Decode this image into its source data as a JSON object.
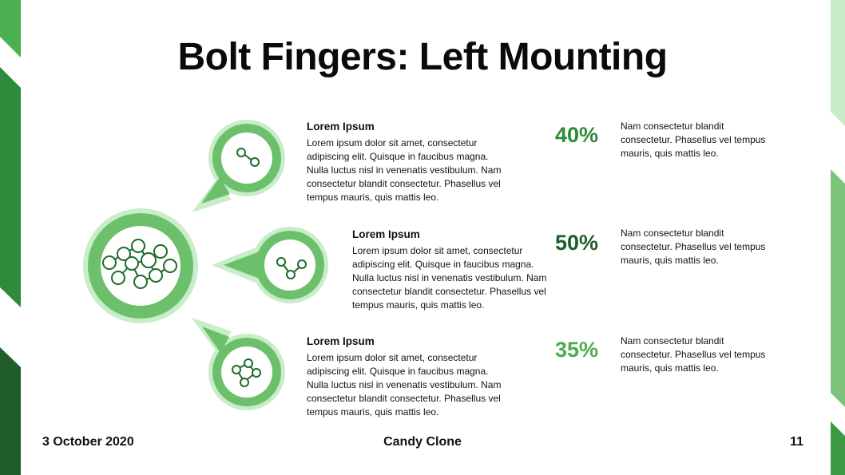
{
  "slide": {
    "title": "Bolt Fingers: Left Mounting",
    "date": "3 October 2020",
    "presenter": "Candy Clone",
    "page_number": "11"
  },
  "colors": {
    "green_light": "#8fd18f",
    "green_mid": "#4fae4f",
    "green_dark": "#1e6b2a",
    "pct_1": "#2e8b3a",
    "pct_2": "#1f5e2a",
    "pct_3": "#4cad4c"
  },
  "items": [
    {
      "heading": "Lorem Ipsum",
      "body": "Lorem ipsum dolor sit amet, consectetur adipiscing elit. Quisque in faucibus magna. Nulla luctus nisl in venenatis vestibulum. Nam consectetur blandit consectetur. Phasellus vel tempus mauris, quis mattis leo.",
      "percent": "40%",
      "note": "Nam consectetur blandit consectetur.  Phasellus vel tempus mauris, quis mattis leo.",
      "icon": "two-node-link-icon"
    },
    {
      "heading": "Lorem Ipsum",
      "body": "Lorem ipsum dolor sit amet, consectetur adipiscing elit. Quisque in faucibus magna. Nulla luctus nisl in venenatis vestibulum. Nam consectetur blandit consectetur. Phasellus vel tempus mauris, quis mattis leo.",
      "percent": "50%",
      "note": "Nam consectetur blandit consectetur.  Phasellus vel tempus mauris, quis mattis leo.",
      "icon": "three-node-link-icon"
    },
    {
      "heading": "Lorem Ipsum",
      "body": "Lorem ipsum dolor sit amet, consectetur adipiscing elit. Quisque in faucibus magna. Nulla luctus nisl in venenatis vestibulum. Nam consectetur blandit consectetur. Phasellus vel tempus mauris, quis mattis leo.",
      "percent": "35%",
      "note": "Nam consectetur blandit consectetur.  Phasellus vel tempus mauris, quis mattis leo.",
      "icon": "four-node-cluster-icon"
    }
  ],
  "hub": {
    "icon": "molecule-cluster-icon"
  }
}
